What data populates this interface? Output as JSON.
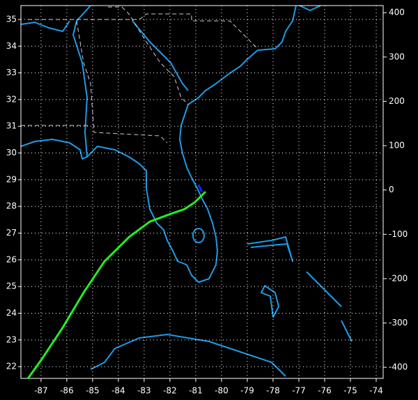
{
  "chart_data": {
    "type": "line",
    "xlim": [
      -87.78,
      -73.73
    ],
    "ylim": [
      21.56,
      35.52
    ],
    "y2lim": [
      -425,
      416
    ],
    "xticks": [
      -87,
      -86,
      -85,
      -84,
      -83,
      -82,
      -81,
      -80,
      -79,
      -78,
      -77,
      -76,
      -75,
      -74
    ],
    "yticks": [
      22,
      23,
      24,
      25,
      26,
      27,
      28,
      29,
      30,
      31,
      32,
      33,
      34,
      35
    ],
    "y2ticks": [
      -400,
      -300,
      -200,
      -100,
      0,
      100,
      200,
      300,
      400
    ],
    "grid": true,
    "series": [
      {
        "color": "#22ee22",
        "x": [
          -87.51,
          -86.97,
          -86.16,
          -85.35,
          -84.54,
          -83.59,
          -82.78,
          -81.97,
          -81.43,
          -81.03,
          -80.62
        ],
        "values": [
          21.55,
          22.28,
          23.46,
          24.77,
          25.94,
          26.85,
          27.43,
          27.72,
          27.9,
          28.16,
          28.55
        ]
      },
      {
        "color": "#2222ff",
        "x": [
          -80.89,
          -80.76
        ],
        "values": [
          28.81,
          28.55
        ]
      }
    ]
  }
}
